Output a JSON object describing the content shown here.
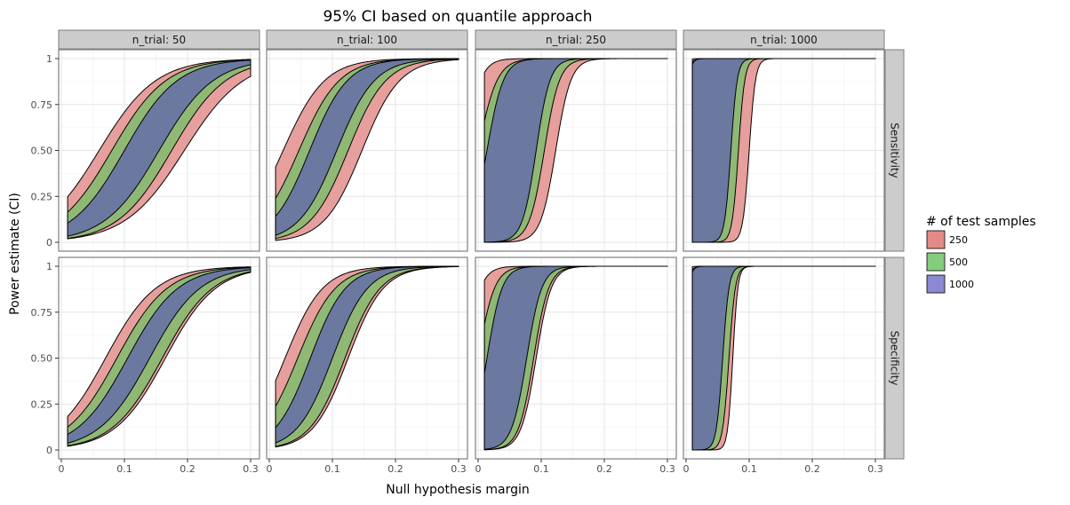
{
  "chart_data": {
    "type": "area",
    "title": "95% CI based on quantile approach",
    "xlabel": "Null hypothesis margin",
    "ylabel": "Power estimate (CI)",
    "facet_col_prefix": "n_trial: ",
    "facet_cols": [
      "50",
      "100",
      "250",
      "1000"
    ],
    "facet_rows": [
      "Sensitivity",
      "Specificity"
    ],
    "x_ticks": [
      "0",
      "0.1",
      "0.2",
      "0.3"
    ],
    "y_ticks": [
      "0",
      "0.25",
      "0.50",
      "0.75",
      "1"
    ],
    "xlim": [
      0,
      0.3
    ],
    "ylim": [
      0,
      1
    ],
    "x_range": [
      0.01,
      0.3
    ],
    "grid": true,
    "legend": {
      "title": "# of test samples",
      "placement": "right",
      "entries": [
        {
          "label": "250",
          "color": "#e38a86"
        },
        {
          "label": "500",
          "color": "#85cc7e"
        },
        {
          "label": "1000",
          "color": "#8a89d2"
        }
      ]
    },
    "series_colors": {
      "250": "#e69f9c",
      "500": "#8fb874",
      "1000": "#6b78a0"
    },
    "panels": [
      {
        "row": "Sensitivity",
        "col": "50",
        "bands": [
          {
            "samples": "250",
            "lower": {
              "x50": 0.195,
              "width": 0.047
            },
            "upper": {
              "x50": 0.06,
              "width": 0.045
            }
          },
          {
            "samples": "500",
            "lower": {
              "x50": 0.175,
              "width": 0.043
            },
            "upper": {
              "x50": 0.08,
              "width": 0.043
            }
          },
          {
            "samples": "1000",
            "lower": {
              "x50": 0.155,
              "width": 0.043
            },
            "upper": {
              "x50": 0.1,
              "width": 0.042
            }
          }
        ]
      },
      {
        "row": "Sensitivity",
        "col": "100",
        "bands": [
          {
            "samples": "250",
            "lower": {
              "x50": 0.147,
              "width": 0.03
            },
            "upper": {
              "x50": 0.022,
              "width": 0.033
            }
          },
          {
            "samples": "500",
            "lower": {
              "x50": 0.125,
              "width": 0.03
            },
            "upper": {
              "x50": 0.047,
              "width": 0.032
            }
          },
          {
            "samples": "1000",
            "lower": {
              "x50": 0.107,
              "width": 0.03
            },
            "upper": {
              "x50": 0.064,
              "width": 0.03
            }
          }
        ]
      },
      {
        "row": "Sensitivity",
        "col": "250",
        "bands": [
          {
            "samples": "250",
            "lower": {
              "x50": 0.123,
              "width": 0.012
            },
            "upper": {
              "x50": -0.02,
              "width": 0.012
            }
          },
          {
            "samples": "500",
            "lower": {
              "x50": 0.105,
              "width": 0.012
            },
            "upper": {
              "x50": 0.0,
              "width": 0.015
            }
          },
          {
            "samples": "1000",
            "lower": {
              "x50": 0.092,
              "width": 0.011
            },
            "upper": {
              "x50": 0.014,
              "width": 0.013
            }
          }
        ]
      },
      {
        "row": "Sensitivity",
        "col": "1000",
        "bands": [
          {
            "samples": "250",
            "lower": {
              "x50": 0.1,
              "width": 0.005
            },
            "upper": {
              "x50": -0.02,
              "width": 0.005
            }
          },
          {
            "samples": "500",
            "lower": {
              "x50": 0.083,
              "width": 0.005
            },
            "upper": {
              "x50": -0.01,
              "width": 0.005
            }
          },
          {
            "samples": "1000",
            "lower": {
              "x50": 0.071,
              "width": 0.005
            },
            "upper": {
              "x50": -0.004,
              "width": 0.004
            }
          }
        ]
      },
      {
        "row": "Specificity",
        "col": "50",
        "bands": [
          {
            "samples": "250",
            "lower": {
              "x50": 0.165,
              "width": 0.04
            },
            "upper": {
              "x50": 0.07,
              "width": 0.04
            }
          },
          {
            "samples": "500",
            "lower": {
              "x50": 0.16,
              "width": 0.04
            },
            "upper": {
              "x50": 0.088,
              "width": 0.04
            }
          },
          {
            "samples": "1000",
            "lower": {
              "x50": 0.14,
              "width": 0.04
            },
            "upper": {
              "x50": 0.105,
              "width": 0.04
            }
          }
        ]
      },
      {
        "row": "Specificity",
        "col": "100",
        "bands": [
          {
            "samples": "250",
            "lower": {
              "x50": 0.125,
              "width": 0.028
            },
            "upper": {
              "x50": 0.025,
              "width": 0.03
            }
          },
          {
            "samples": "500",
            "lower": {
              "x50": 0.12,
              "width": 0.028
            },
            "upper": {
              "x50": 0.045,
              "width": 0.03
            }
          },
          {
            "samples": "1000",
            "lower": {
              "x50": 0.1,
              "width": 0.028
            },
            "upper": {
              "x50": 0.065,
              "width": 0.028
            }
          }
        ]
      },
      {
        "row": "Specificity",
        "col": "250",
        "bands": [
          {
            "samples": "250",
            "lower": {
              "x50": 0.092,
              "width": 0.012
            },
            "upper": {
              "x50": -0.02,
              "width": 0.012
            }
          },
          {
            "samples": "500",
            "lower": {
              "x50": 0.088,
              "width": 0.012
            },
            "upper": {
              "x50": 0.0,
              "width": 0.013
            }
          },
          {
            "samples": "1000",
            "lower": {
              "x50": 0.077,
              "width": 0.012
            },
            "upper": {
              "x50": 0.014,
              "width": 0.012
            }
          }
        ]
      },
      {
        "row": "Specificity",
        "col": "1000",
        "bands": [
          {
            "samples": "250",
            "lower": {
              "x50": 0.074,
              "width": 0.004
            },
            "upper": {
              "x50": -0.02,
              "width": 0.005
            }
          },
          {
            "samples": "500",
            "lower": {
              "x50": 0.068,
              "width": 0.005
            },
            "upper": {
              "x50": -0.01,
              "width": 0.005
            }
          },
          {
            "samples": "1000",
            "lower": {
              "x50": 0.058,
              "width": 0.005
            },
            "upper": {
              "x50": -0.004,
              "width": 0.004
            }
          }
        ]
      }
    ]
  }
}
